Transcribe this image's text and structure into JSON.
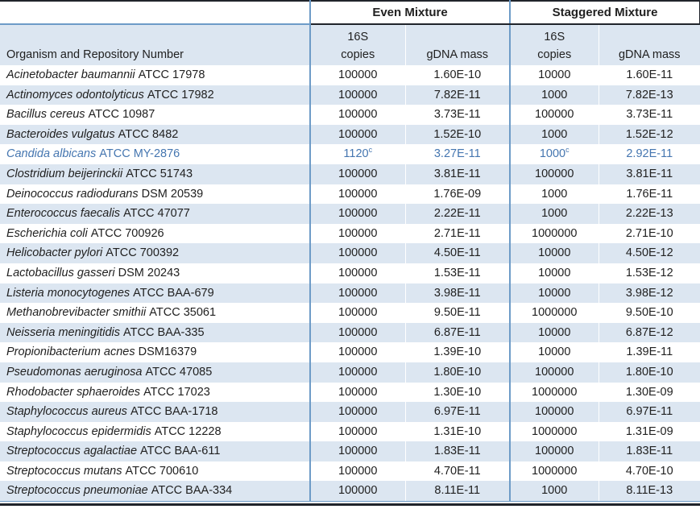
{
  "colors": {
    "band": "#DCE6F1",
    "divider": "#6D9BC7",
    "dark": "#20242B",
    "highlight_text": "#4576B0",
    "text": "#212121"
  },
  "header": {
    "even_mixture": "Even Mixture",
    "staggered_mixture": "Staggered Mixture",
    "organism_column": "Organism and Repository Number",
    "copies_line1": "16S",
    "copies_line2": "copies",
    "gdna_mass": "gDNA mass"
  },
  "rows": [
    {
      "organism": "Acinetobacter baumannii",
      "repository": "ATCC 17978",
      "even_copies": "100000",
      "even_copies_sup": "",
      "even_gdna": "1.60E-10",
      "staggered_copies": "10000",
      "staggered_copies_sup": "",
      "staggered_gdna": "1.60E-11",
      "highlighted": false
    },
    {
      "organism": "Actinomyces odontolyticus",
      "repository": "ATCC 17982",
      "even_copies": "100000",
      "even_copies_sup": "",
      "even_gdna": "7.82E-11",
      "staggered_copies": "1000",
      "staggered_copies_sup": "",
      "staggered_gdna": "7.82E-13",
      "highlighted": false
    },
    {
      "organism": "Bacillus cereus",
      "repository": "ATCC 10987",
      "even_copies": "100000",
      "even_copies_sup": "",
      "even_gdna": "3.73E-11",
      "staggered_copies": "100000",
      "staggered_copies_sup": "",
      "staggered_gdna": "3.73E-11",
      "highlighted": false
    },
    {
      "organism": "Bacteroides vulgatus",
      "repository": "ATCC 8482",
      "even_copies": "100000",
      "even_copies_sup": "",
      "even_gdna": "1.52E-10",
      "staggered_copies": "1000",
      "staggered_copies_sup": "",
      "staggered_gdna": "1.52E-12",
      "highlighted": false
    },
    {
      "organism": "Candida albicans",
      "repository": "ATCC MY-2876",
      "even_copies": "1120",
      "even_copies_sup": "c",
      "even_gdna": "3.27E-11",
      "staggered_copies": "1000",
      "staggered_copies_sup": "c",
      "staggered_gdna": "2.92E-11",
      "highlighted": true
    },
    {
      "organism": "Clostridium beijerinckii",
      "repository": "ATCC 51743",
      "even_copies": "100000",
      "even_copies_sup": "",
      "even_gdna": "3.81E-11",
      "staggered_copies": "100000",
      "staggered_copies_sup": "",
      "staggered_gdna": "3.81E-11",
      "highlighted": false
    },
    {
      "organism": "Deinococcus radiodurans",
      "repository": "DSM 20539",
      "even_copies": "100000",
      "even_copies_sup": "",
      "even_gdna": "1.76E-09",
      "staggered_copies": "1000",
      "staggered_copies_sup": "",
      "staggered_gdna": "1.76E-11",
      "highlighted": false
    },
    {
      "organism": "Enterococcus faecalis",
      "repository": "ATCC 47077",
      "even_copies": "100000",
      "even_copies_sup": "",
      "even_gdna": "2.22E-11",
      "staggered_copies": "1000",
      "staggered_copies_sup": "",
      "staggered_gdna": "2.22E-13",
      "highlighted": false
    },
    {
      "organism": "Escherichia coli",
      "repository": "ATCC 700926",
      "even_copies": "100000",
      "even_copies_sup": "",
      "even_gdna": "2.71E-11",
      "staggered_copies": "1000000",
      "staggered_copies_sup": "",
      "staggered_gdna": "2.71E-10",
      "highlighted": false
    },
    {
      "organism": "Helicobacter pylori",
      "repository": "ATCC 700392",
      "even_copies": "100000",
      "even_copies_sup": "",
      "even_gdna": "4.50E-11",
      "staggered_copies": "10000",
      "staggered_copies_sup": "",
      "staggered_gdna": "4.50E-12",
      "highlighted": false
    },
    {
      "organism": "Lactobacillus gasseri",
      "repository": "DSM 20243",
      "even_copies": "100000",
      "even_copies_sup": "",
      "even_gdna": "1.53E-11",
      "staggered_copies": "10000",
      "staggered_copies_sup": "",
      "staggered_gdna": "1.53E-12",
      "highlighted": false
    },
    {
      "organism": "Listeria monocytogenes",
      "repository": "ATCC BAA-679",
      "even_copies": "100000",
      "even_copies_sup": "",
      "even_gdna": "3.98E-11",
      "staggered_copies": "10000",
      "staggered_copies_sup": "",
      "staggered_gdna": "3.98E-12",
      "highlighted": false
    },
    {
      "organism": "Methanobrevibacter smithii",
      "repository": "ATCC 35061",
      "even_copies": "100000",
      "even_copies_sup": "",
      "even_gdna": "9.50E-11",
      "staggered_copies": "1000000",
      "staggered_copies_sup": "",
      "staggered_gdna": "9.50E-10",
      "highlighted": false
    },
    {
      "organism": "Neisseria meningitidis",
      "repository": "ATCC BAA-335",
      "even_copies": "100000",
      "even_copies_sup": "",
      "even_gdna": "6.87E-11",
      "staggered_copies": "10000",
      "staggered_copies_sup": "",
      "staggered_gdna": "6.87E-12",
      "highlighted": false
    },
    {
      "organism": "Propionibacterium acnes",
      "repository": "DSM16379",
      "even_copies": "100000",
      "even_copies_sup": "",
      "even_gdna": "1.39E-10",
      "staggered_copies": "10000",
      "staggered_copies_sup": "",
      "staggered_gdna": "1.39E-11",
      "highlighted": false
    },
    {
      "organism": "Pseudomonas aeruginosa",
      "repository": "ATCC 47085",
      "even_copies": "100000",
      "even_copies_sup": "",
      "even_gdna": "1.80E-10",
      "staggered_copies": "100000",
      "staggered_copies_sup": "",
      "staggered_gdna": "1.80E-10",
      "highlighted": false
    },
    {
      "organism": "Rhodobacter sphaeroides",
      "repository": "ATCC 17023",
      "even_copies": "100000",
      "even_copies_sup": "",
      "even_gdna": "1.30E-10",
      "staggered_copies": "1000000",
      "staggered_copies_sup": "",
      "staggered_gdna": "1.30E-09",
      "highlighted": false
    },
    {
      "organism": "Staphylococcus aureus",
      "repository": "ATCC BAA-1718",
      "even_copies": "100000",
      "even_copies_sup": "",
      "even_gdna": "6.97E-11",
      "staggered_copies": "100000",
      "staggered_copies_sup": "",
      "staggered_gdna": "6.97E-11",
      "highlighted": false
    },
    {
      "organism": "Staphylococcus epidermidis",
      "repository": "ATCC 12228",
      "even_copies": "100000",
      "even_copies_sup": "",
      "even_gdna": "1.31E-10",
      "staggered_copies": "1000000",
      "staggered_copies_sup": "",
      "staggered_gdna": "1.31E-09",
      "highlighted": false
    },
    {
      "organism": "Streptococcus agalactiae",
      "repository": "ATCC BAA-611",
      "even_copies": "100000",
      "even_copies_sup": "",
      "even_gdna": "1.83E-11",
      "staggered_copies": "100000",
      "staggered_copies_sup": "",
      "staggered_gdna": "1.83E-11",
      "highlighted": false
    },
    {
      "organism": "Streptococcus mutans",
      "repository": "ATCC 700610",
      "even_copies": "100000",
      "even_copies_sup": "",
      "even_gdna": "4.70E-11",
      "staggered_copies": "1000000",
      "staggered_copies_sup": "",
      "staggered_gdna": "4.70E-10",
      "highlighted": false
    },
    {
      "organism": "Streptococcus pneumoniae",
      "repository": "ATCC BAA-334",
      "even_copies": "100000",
      "even_copies_sup": "",
      "even_gdna": "8.11E-11",
      "staggered_copies": "1000",
      "staggered_copies_sup": "",
      "staggered_gdna": "8.11E-13",
      "highlighted": false
    }
  ]
}
